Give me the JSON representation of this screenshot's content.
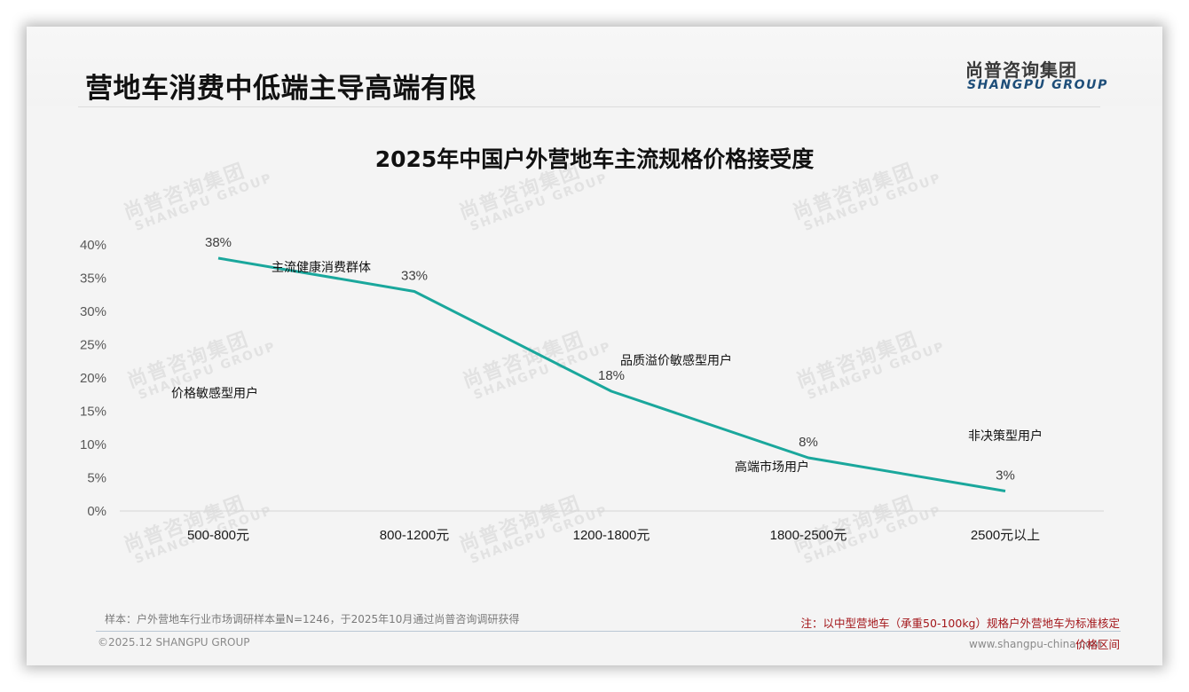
{
  "header": {
    "title": "营地车消费中低端主导高端有限",
    "logo_cn": "尚普咨询集团",
    "logo_en": "SHANGPU GROUP"
  },
  "watermark": {
    "cn": "尚普咨询集团",
    "en": "SHANGPU GROUP"
  },
  "colors": {
    "line": "#1aa79c",
    "note": "#a3161a",
    "logo_en": "#1e4e79"
  },
  "chart_data": {
    "type": "line",
    "title": "2025年中国户外营地车主流规格价格接受度",
    "xlabel": "",
    "ylabel": "",
    "categories": [
      "500-800元",
      "800-1200元",
      "1200-1800元",
      "1800-2500元",
      "2500元以上"
    ],
    "values": [
      38,
      33,
      18,
      8,
      3
    ],
    "value_labels": [
      "38%",
      "33%",
      "18%",
      "8%",
      "3%"
    ],
    "yticks": [
      "0%",
      "5%",
      "10%",
      "15%",
      "20%",
      "25%",
      "30%",
      "35%",
      "40%"
    ],
    "ylim": [
      0,
      40
    ],
    "grid": false,
    "legend": null,
    "annotations": [
      "价格敏感型用户",
      "主流健康消费群体",
      "品质溢价敏感型用户",
      "高端市场用户",
      "非决策型用户"
    ]
  },
  "footer": {
    "sample_note": "样本：户外营地车行业市场调研样本量N=1246，于2025年10月通过尚普咨询调研获得",
    "copyright": "©2025.12 SHANGPU GROUP",
    "website": "www.shangpu-china.com",
    "note_line1": "注：以中型营地车（承重50-100kg）规格户外营地车为标准核定",
    "note_line2": "价格区间"
  }
}
